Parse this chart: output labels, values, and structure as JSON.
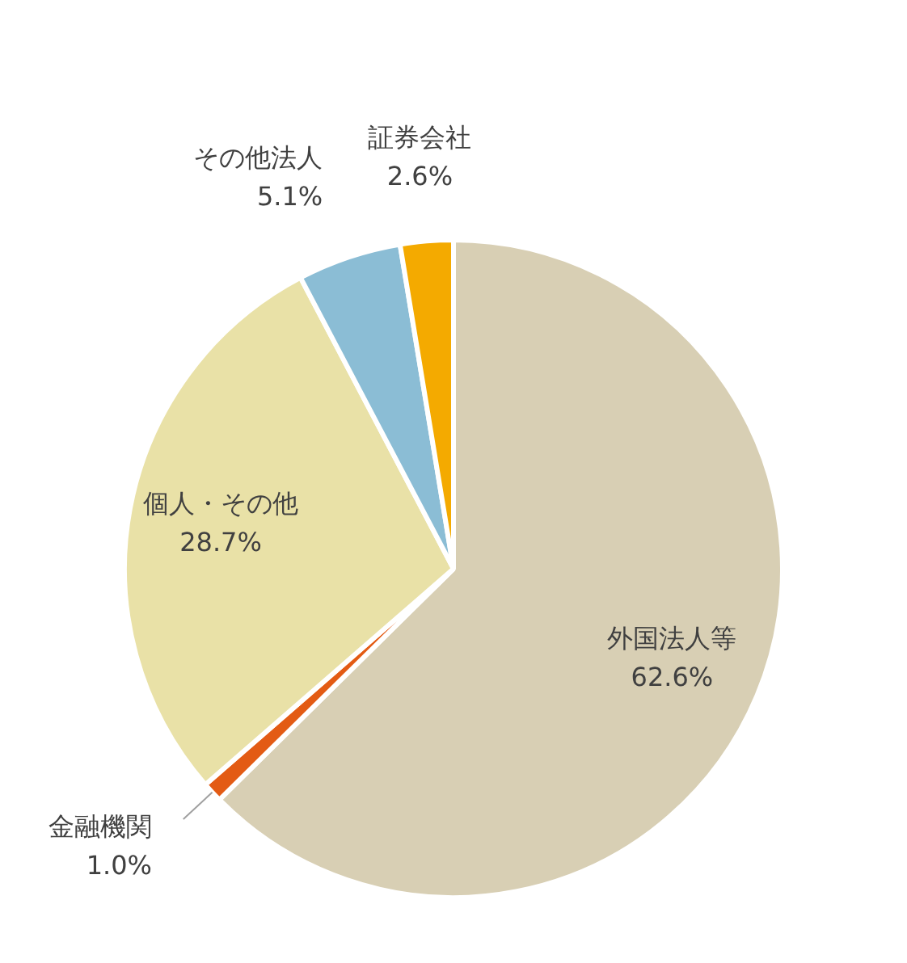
{
  "chart_data": {
    "type": "pie",
    "categories": [
      "外国法人等",
      "金融機関",
      "個人・その他",
      "その他法人",
      "証券会社"
    ],
    "values": [
      62.6,
      1.0,
      28.7,
      5.1,
      2.6
    ],
    "colors": [
      "#d8cfb4",
      "#e35b14",
      "#e9e1a7",
      "#8bbdd5",
      "#f4aa00"
    ],
    "value_labels": [
      "62.6%",
      "1.0%",
      "28.7%",
      "5.1%",
      "2.6%"
    ],
    "legend": false
  }
}
